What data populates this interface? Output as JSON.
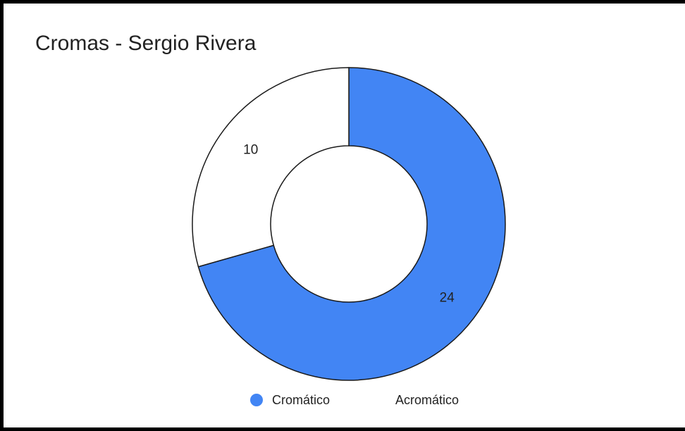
{
  "chart_data": {
    "type": "pie",
    "title": "Cromas - Sergio Rivera",
    "donut": true,
    "legend_position": "bottom",
    "slices": [
      {
        "label": "Cromático",
        "value": 24,
        "color": "#4285f4"
      },
      {
        "label": "Acromático",
        "value": 10,
        "color": "#ffffff"
      }
    ]
  }
}
